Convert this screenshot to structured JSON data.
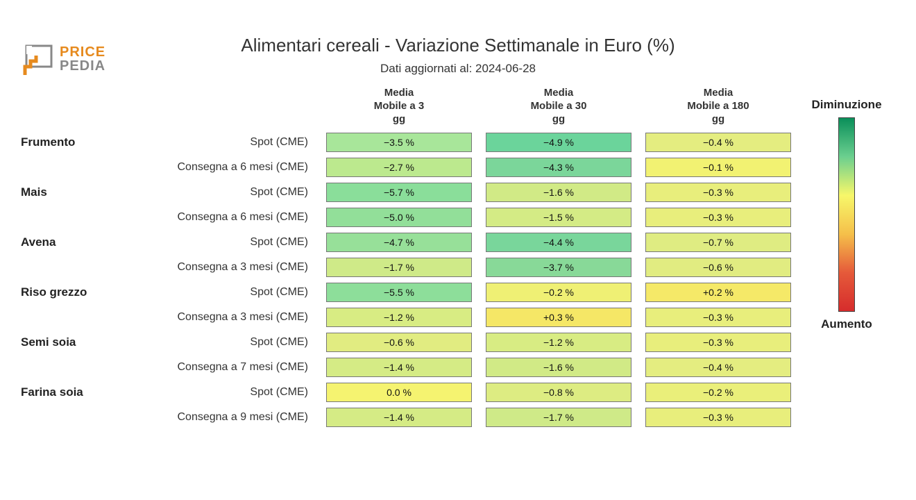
{
  "logo": {
    "line1": "PRICE",
    "line2": "PEDIA",
    "color_top": "#e68a1e",
    "color_bottom": "#888888"
  },
  "title": "Alimentari cereali - Variazione Settimanale in Euro (%)",
  "subtitle": "Dati aggiornati al: 2024-06-28",
  "columns": [
    {
      "l1": "Media",
      "l2": "Mobile a 3",
      "l3": "gg"
    },
    {
      "l1": "Media",
      "l2": "Mobile a 30",
      "l3": "gg"
    },
    {
      "l1": "Media",
      "l2": "Mobile a 180",
      "l3": "gg"
    }
  ],
  "legend": {
    "top": "Diminuzione",
    "bottom": "Aumento"
  },
  "gradient": {
    "stops": [
      "#0a8f5a",
      "#6bcf8f",
      "#f7f76a",
      "#f5c04a",
      "#e55a3a",
      "#d62c2c"
    ]
  },
  "color_scale": {
    "min_value": -6.0,
    "min_color": "#3fc98a",
    "zero_color": "#f7f76a",
    "max_value": 0.5,
    "max_color": "#f5d05a"
  },
  "groups": [
    {
      "name": "Frumento",
      "rows": [
        {
          "label": "Spot (CME)",
          "cells": [
            {
              "text": "−3.5 %",
              "color": "#a8e69a"
            },
            {
              "text": "−4.9 %",
              "color": "#6bd49b"
            },
            {
              "text": "−0.4 %",
              "color": "#e4ed80"
            }
          ]
        },
        {
          "label": "Consegna a 6 mesi (CME)",
          "cells": [
            {
              "text": "−2.7 %",
              "color": "#bce98e"
            },
            {
              "text": "−4.3 %",
              "color": "#7bd69a"
            },
            {
              "text": "−0.1 %",
              "color": "#f2f272"
            }
          ]
        }
      ]
    },
    {
      "name": "Mais",
      "rows": [
        {
          "label": "Spot (CME)",
          "cells": [
            {
              "text": "−5.7 %",
              "color": "#8ade9a"
            },
            {
              "text": "−1.6 %",
              "color": "#d1ea86"
            },
            {
              "text": "−0.3 %",
              "color": "#e8ee7c"
            }
          ]
        },
        {
          "label": "Consegna a 6 mesi (CME)",
          "cells": [
            {
              "text": "−5.0 %",
              "color": "#92df99"
            },
            {
              "text": "−1.5 %",
              "color": "#d4eb85"
            },
            {
              "text": "−0.3 %",
              "color": "#e8ee7c"
            }
          ]
        }
      ]
    },
    {
      "name": "Avena",
      "rows": [
        {
          "label": "Spot (CME)",
          "cells": [
            {
              "text": "−4.7 %",
              "color": "#97e099"
            },
            {
              "text": "−4.4 %",
              "color": "#79d69b"
            },
            {
              "text": "−0.7 %",
              "color": "#dfec82"
            }
          ]
        },
        {
          "label": "Consegna a 3 mesi (CME)",
          "cells": [
            {
              "text": "−1.7 %",
              "color": "#cfea88"
            },
            {
              "text": "−3.7 %",
              "color": "#88d998"
            },
            {
              "text": "−0.6 %",
              "color": "#e1ec81"
            }
          ]
        }
      ]
    },
    {
      "name": "Riso grezzo",
      "rows": [
        {
          "label": "Spot (CME)",
          "cells": [
            {
              "text": "−5.5 %",
              "color": "#8dde9a"
            },
            {
              "text": "−0.2 %",
              "color": "#eff074"
            },
            {
              "text": "+0.2 %",
              "color": "#f5e968"
            }
          ]
        },
        {
          "label": "Consegna a 3 mesi (CME)",
          "cells": [
            {
              "text": "−1.2 %",
              "color": "#d8ec83"
            },
            {
              "text": "+0.3 %",
              "color": "#f5e766"
            },
            {
              "text": "−0.3 %",
              "color": "#e8ee7c"
            }
          ]
        }
      ]
    },
    {
      "name": "Semi soia",
      "rows": [
        {
          "label": "Spot (CME)",
          "cells": [
            {
              "text": "−0.6 %",
              "color": "#e1ec81"
            },
            {
              "text": "−1.2 %",
              "color": "#d8ec83"
            },
            {
              "text": "−0.3 %",
              "color": "#e8ee7c"
            }
          ]
        },
        {
          "label": "Consegna a 7 mesi (CME)",
          "cells": [
            {
              "text": "−1.4 %",
              "color": "#d5eb85"
            },
            {
              "text": "−1.6 %",
              "color": "#d1ea86"
            },
            {
              "text": "−0.4 %",
              "color": "#e4ed80"
            }
          ]
        }
      ]
    },
    {
      "name": "Farina soia",
      "rows": [
        {
          "label": "Spot (CME)",
          "cells": [
            {
              "text": "0.0 %",
              "color": "#f5f370"
            },
            {
              "text": "−0.8 %",
              "color": "#ddec82"
            },
            {
              "text": "−0.2 %",
              "color": "#eaef7a"
            }
          ]
        },
        {
          "label": "Consegna a 9 mesi (CME)",
          "cells": [
            {
              "text": "−1.4 %",
              "color": "#d5eb85"
            },
            {
              "text": "−1.7 %",
              "color": "#cfea88"
            },
            {
              "text": "−0.3 %",
              "color": "#e8ee7c"
            }
          ]
        }
      ]
    }
  ],
  "cell_border_color": "#777777",
  "background_color": "#ffffff",
  "fontsize_title": 26,
  "fontsize_subtitle": 17,
  "fontsize_colhdr": 15,
  "fontsize_category": 17,
  "fontsize_rowlabel": 16,
  "fontsize_cell": 14
}
